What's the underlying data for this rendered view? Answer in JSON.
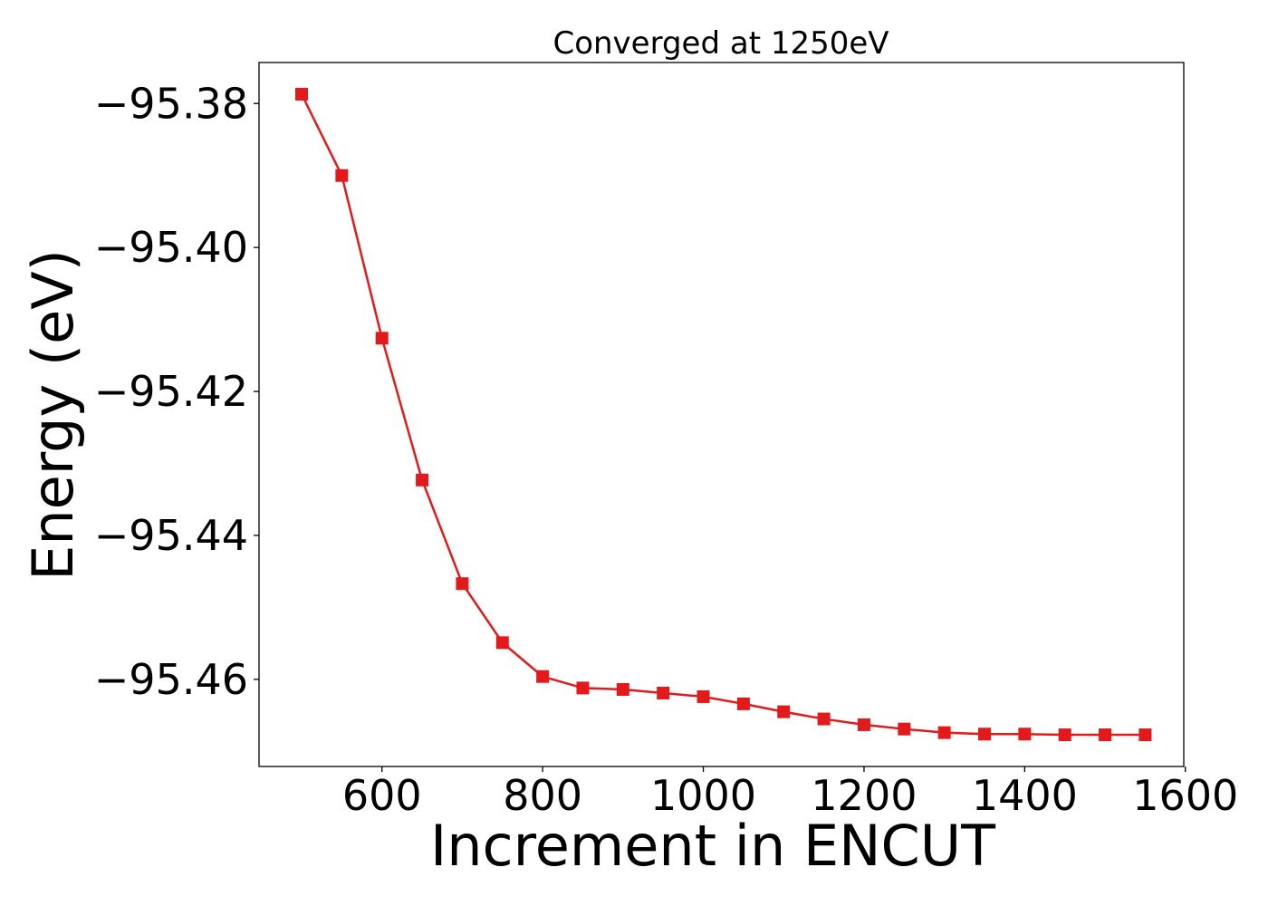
{
  "chart_data": {
    "type": "line",
    "title": "Converged at 1250eV",
    "xlabel": "Increment in ENCUT",
    "ylabel": "Energy (eV)",
    "xlim": [
      447,
      1598
    ],
    "ylim": [
      -95.4721,
      -95.3743
    ],
    "x_ticks": [
      600,
      800,
      1000,
      1200,
      1400,
      1600
    ],
    "x_tick_labels": [
      "600",
      "800",
      "1000",
      "1200",
      "1400",
      "1600"
    ],
    "y_ticks": [
      -95.38,
      -95.4,
      -95.42,
      -95.44,
      -95.46
    ],
    "y_tick_labels": [
      "−95.38",
      "−95.40",
      "−95.42",
      "−95.44",
      "−95.46"
    ],
    "grid": false,
    "legend": "none",
    "series": [
      {
        "color": "#e31a1c",
        "marker": "square",
        "x": [
          500,
          550,
          600,
          650,
          700,
          750,
          800,
          850,
          900,
          950,
          1000,
          1050,
          1100,
          1150,
          1200,
          1250,
          1300,
          1350,
          1400,
          1450,
          1500,
          1550
        ],
        "y": [
          -95.3787,
          -95.39,
          -95.4126,
          -95.4323,
          -95.4467,
          -95.4549,
          -95.4596,
          -95.4612,
          -95.4614,
          -95.4619,
          -95.4624,
          -95.4634,
          -95.4645,
          -95.4655,
          -95.4663,
          -95.4669,
          -95.4674,
          -95.4676,
          -95.4676,
          -95.4677,
          -95.4677,
          -95.4677
        ]
      }
    ]
  }
}
